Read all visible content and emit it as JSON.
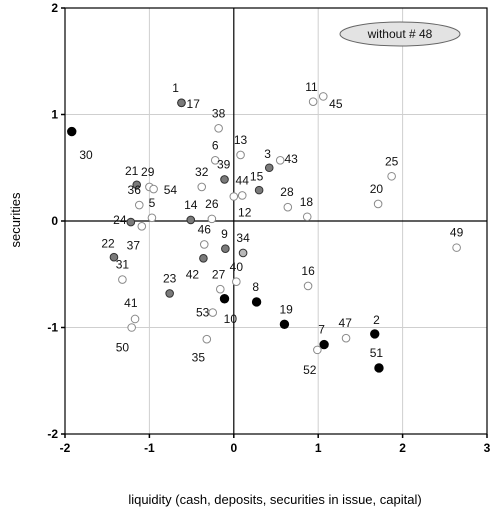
{
  "chart_data": {
    "type": "scatter",
    "title": "",
    "xlabel": "liquidity (cash, deposits, securities in issue, capital)",
    "ylabel": "securities",
    "xlim": [
      -2,
      3
    ],
    "ylim": [
      -2,
      2
    ],
    "x_ticks": [
      -2,
      -1,
      0,
      1,
      2,
      3
    ],
    "y_ticks": [
      -2,
      -1,
      0,
      1,
      2
    ],
    "grid": true,
    "annotation": "without # 48",
    "colors": {
      "open": "#ffffff",
      "light": "#b8b8b8",
      "medium": "#7a7a7a",
      "dark": "#000000",
      "open_stroke": "#8a8a8a"
    },
    "points": [
      {
        "id": "1",
        "x": -0.62,
        "y": 1.11,
        "fill": "medium",
        "lx": -0.03,
        "ly": 0.14,
        "anchor": "end"
      },
      {
        "id": "17",
        "x": -0.62,
        "y": 1.11,
        "fill": "medium",
        "lx": 0.06,
        "ly": -0.01,
        "anchor": "start"
      },
      {
        "id": "2",
        "x": 1.67,
        "y": -1.06,
        "fill": "dark",
        "lx": 0.02,
        "ly": 0.13,
        "anchor": "middle"
      },
      {
        "id": "3",
        "x": 0.42,
        "y": 0.5,
        "fill": "medium",
        "lx": -0.02,
        "ly": 0.13,
        "anchor": "middle"
      },
      {
        "id": "5",
        "x": -0.97,
        "y": 0.03,
        "fill": "open",
        "lx": 0.0,
        "ly": 0.14,
        "anchor": "middle"
      },
      {
        "id": "6",
        "x": -0.22,
        "y": 0.57,
        "fill": "open",
        "lx": 0.0,
        "ly": 0.14,
        "anchor": "middle"
      },
      {
        "id": "7",
        "x": 1.07,
        "y": -1.16,
        "fill": "dark",
        "lx": -0.03,
        "ly": 0.14,
        "anchor": "middle"
      },
      {
        "id": "8",
        "x": 0.27,
        "y": -0.76,
        "fill": "dark",
        "lx": -0.01,
        "ly": 0.14,
        "anchor": "middle"
      },
      {
        "id": "9",
        "x": -0.1,
        "y": -0.26,
        "fill": "medium",
        "lx": -0.01,
        "ly": 0.14,
        "anchor": "middle"
      },
      {
        "id": "10",
        "x": -0.11,
        "y": -0.73,
        "fill": "dark",
        "lx": -0.01,
        "ly": -0.19,
        "anchor": "start"
      },
      {
        "id": "11",
        "x": 0.94,
        "y": 1.12,
        "fill": "open",
        "lx": -0.02,
        "ly": 0.14,
        "anchor": "middle"
      },
      {
        "id": "12",
        "x": 0.0,
        "y": 0.23,
        "fill": "open",
        "lx": 0.05,
        "ly": -0.15,
        "anchor": "start"
      },
      {
        "id": "13",
        "x": 0.08,
        "y": 0.62,
        "fill": "open",
        "lx": 0.0,
        "ly": 0.14,
        "anchor": "middle"
      },
      {
        "id": "14",
        "x": -0.51,
        "y": 0.01,
        "fill": "medium",
        "lx": 0.0,
        "ly": 0.14,
        "anchor": "middle"
      },
      {
        "id": "15",
        "x": 0.3,
        "y": 0.29,
        "fill": "medium",
        "lx": -0.03,
        "ly": 0.13,
        "anchor": "middle"
      },
      {
        "id": "16",
        "x": 0.88,
        "y": -0.61,
        "fill": "open",
        "lx": 0.0,
        "ly": 0.14,
        "anchor": "middle"
      },
      {
        "id": "18",
        "x": 0.87,
        "y": 0.04,
        "fill": "open",
        "lx": -0.01,
        "ly": 0.14,
        "anchor": "middle"
      },
      {
        "id": "19",
        "x": 0.6,
        "y": -0.97,
        "fill": "dark",
        "lx": 0.02,
        "ly": 0.14,
        "anchor": "middle"
      },
      {
        "id": "20",
        "x": 1.71,
        "y": 0.16,
        "fill": "open",
        "lx": -0.02,
        "ly": 0.14,
        "anchor": "middle"
      },
      {
        "id": "21",
        "x": -1.15,
        "y": 0.34,
        "fill": "medium",
        "lx": -0.06,
        "ly": 0.13,
        "anchor": "middle"
      },
      {
        "id": "22",
        "x": -1.42,
        "y": -0.34,
        "fill": "medium",
        "lx": -0.07,
        "ly": 0.13,
        "anchor": "middle"
      },
      {
        "id": "23",
        "x": -0.76,
        "y": -0.68,
        "fill": "medium",
        "lx": 0.0,
        "ly": 0.14,
        "anchor": "middle"
      },
      {
        "id": "24",
        "x": -1.22,
        "y": -0.01,
        "fill": "medium",
        "lx": -0.13,
        "ly": 0.02,
        "anchor": "middle"
      },
      {
        "id": "25",
        "x": 1.87,
        "y": 0.42,
        "fill": "open",
        "lx": 0.0,
        "ly": 0.14,
        "anchor": "middle"
      },
      {
        "id": "26",
        "x": -0.26,
        "y": 0.02,
        "fill": "open",
        "lx": 0.0,
        "ly": 0.14,
        "anchor": "middle"
      },
      {
        "id": "27",
        "x": -0.16,
        "y": -0.64,
        "fill": "open",
        "lx": -0.02,
        "ly": 0.14,
        "anchor": "middle"
      },
      {
        "id": "28",
        "x": 0.64,
        "y": 0.13,
        "fill": "open",
        "lx": -0.01,
        "ly": 0.14,
        "anchor": "middle"
      },
      {
        "id": "29",
        "x": -1.0,
        "y": 0.32,
        "fill": "open",
        "lx": -0.02,
        "ly": 0.14,
        "anchor": "middle"
      },
      {
        "id": "30",
        "x": -1.92,
        "y": 0.84,
        "fill": "dark",
        "lx": 0.09,
        "ly": -0.22,
        "anchor": "start"
      },
      {
        "id": "31",
        "x": -1.32,
        "y": -0.55,
        "fill": "open",
        "lx": 0.0,
        "ly": 0.14,
        "anchor": "middle"
      },
      {
        "id": "32",
        "x": -0.38,
        "y": 0.32,
        "fill": "open",
        "lx": 0.0,
        "ly": 0.14,
        "anchor": "middle"
      },
      {
        "id": "34",
        "x": 0.11,
        "y": -0.3,
        "fill": "light",
        "lx": 0.0,
        "ly": 0.14,
        "anchor": "middle"
      },
      {
        "id": "35",
        "x": -0.32,
        "y": -1.11,
        "fill": "open",
        "lx": -0.1,
        "ly": -0.17,
        "anchor": "middle"
      },
      {
        "id": "36",
        "x": -1.12,
        "y": 0.15,
        "fill": "open",
        "lx": -0.06,
        "ly": 0.14,
        "anchor": "middle"
      },
      {
        "id": "37",
        "x": -1.09,
        "y": -0.05,
        "fill": "open",
        "lx": -0.1,
        "ly": -0.18,
        "anchor": "middle"
      },
      {
        "id": "38",
        "x": -0.18,
        "y": 0.87,
        "fill": "open",
        "lx": 0.0,
        "ly": 0.14,
        "anchor": "middle"
      },
      {
        "id": "39",
        "x": -0.11,
        "y": 0.39,
        "fill": "medium",
        "lx": -0.01,
        "ly": 0.14,
        "anchor": "middle"
      },
      {
        "id": "40",
        "x": 0.03,
        "y": -0.57,
        "fill": "open",
        "lx": 0.0,
        "ly": 0.14,
        "anchor": "middle"
      },
      {
        "id": "41",
        "x": -1.17,
        "y": -0.92,
        "fill": "open",
        "lx": -0.05,
        "ly": 0.15,
        "anchor": "middle"
      },
      {
        "id": "42",
        "x": -0.36,
        "y": -0.35,
        "fill": "medium",
        "lx": -0.13,
        "ly": -0.15,
        "anchor": "middle"
      },
      {
        "id": "43",
        "x": 0.55,
        "y": 0.57,
        "fill": "open",
        "lx": 0.05,
        "ly": 0.01,
        "anchor": "start"
      },
      {
        "id": "44",
        "x": 0.1,
        "y": 0.24,
        "fill": "open",
        "lx": 0.0,
        "ly": 0.14,
        "anchor": "middle"
      },
      {
        "id": "45",
        "x": 1.06,
        "y": 1.17,
        "fill": "open",
        "lx": 0.07,
        "ly": -0.07,
        "anchor": "start"
      },
      {
        "id": "46",
        "x": -0.35,
        "y": -0.22,
        "fill": "open",
        "lx": 0.0,
        "ly": 0.14,
        "anchor": "middle"
      },
      {
        "id": "47",
        "x": 1.33,
        "y": -1.1,
        "fill": "open",
        "lx": -0.01,
        "ly": 0.14,
        "anchor": "middle"
      },
      {
        "id": "49",
        "x": 2.64,
        "y": -0.25,
        "fill": "open",
        "lx": 0.0,
        "ly": 0.14,
        "anchor": "middle"
      },
      {
        "id": "50",
        "x": -1.21,
        "y": -1.0,
        "fill": "open",
        "lx": -0.11,
        "ly": -0.19,
        "anchor": "middle"
      },
      {
        "id": "51",
        "x": 1.72,
        "y": -1.38,
        "fill": "dark",
        "lx": -0.03,
        "ly": 0.14,
        "anchor": "middle"
      },
      {
        "id": "52",
        "x": 0.99,
        "y": -1.21,
        "fill": "open",
        "lx": -0.09,
        "ly": -0.19,
        "anchor": "middle"
      },
      {
        "id": "53",
        "x": -0.25,
        "y": -0.86,
        "fill": "open",
        "lx": -0.04,
        "ly": 0.0,
        "anchor": "end"
      },
      {
        "id": "54",
        "x": -0.95,
        "y": 0.3,
        "fill": "open",
        "lx": 0.12,
        "ly": -0.01,
        "anchor": "start"
      }
    ]
  }
}
